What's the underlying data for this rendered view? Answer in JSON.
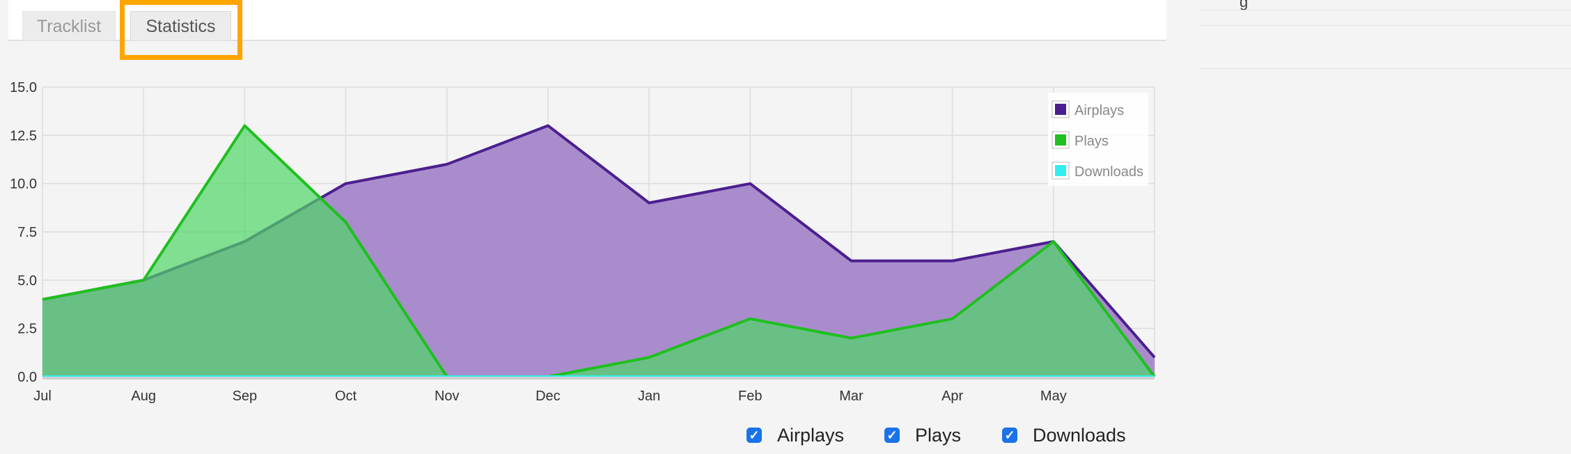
{
  "tabs": [
    {
      "label": "Tracklist",
      "active": false
    },
    {
      "label": "Statistics",
      "active": true
    }
  ],
  "highlight_color": "#ffa500",
  "sidebar": {
    "partial_text": "g"
  },
  "toggles": [
    {
      "label": "Airplays",
      "checked": true
    },
    {
      "label": "Plays",
      "checked": true
    },
    {
      "label": "Downloads",
      "checked": true
    }
  ],
  "chart_data": {
    "type": "area",
    "x": [
      "Jul",
      "Aug",
      "Sep",
      "Oct",
      "Nov",
      "Dec",
      "Jan",
      "Feb",
      "Mar",
      "Apr",
      "May",
      ""
    ],
    "y_ticks": [
      "0.0",
      "2.5",
      "5.0",
      "7.5",
      "10.0",
      "12.5",
      "15.0"
    ],
    "ylim": [
      0,
      15
    ],
    "grid": true,
    "legend_position": "top-right",
    "series": [
      {
        "name": "Airplays",
        "color": "#4b1f8f",
        "fill": "#a98ccc",
        "values": [
          4,
          5,
          7,
          10,
          11,
          13,
          9,
          10,
          6,
          6,
          7,
          1
        ]
      },
      {
        "name": "Plays",
        "color": "#1fbf1f",
        "fill": "#4fd665",
        "values": [
          4,
          5,
          13,
          8,
          0,
          0,
          1,
          3,
          2,
          3,
          7,
          0
        ]
      },
      {
        "name": "Downloads",
        "color": "#33eeee",
        "fill": "#33eeee",
        "values": [
          0,
          0,
          0,
          0,
          0,
          0,
          0,
          0,
          0,
          0,
          0,
          0
        ]
      }
    ]
  }
}
